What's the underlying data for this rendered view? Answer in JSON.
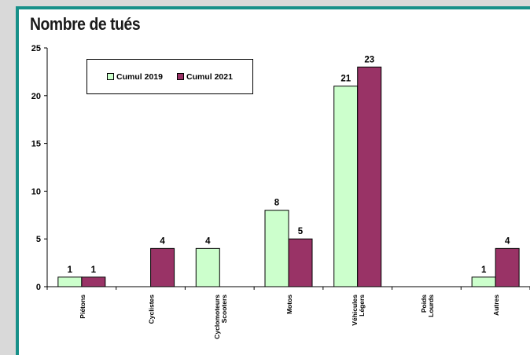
{
  "colors": {
    "frame": "#179089",
    "series_2019": "#ccffcc",
    "series_2021": "#993366"
  },
  "chart_data": {
    "type": "bar",
    "title": "Nombre de tués",
    "categories": [
      [
        "Piétons"
      ],
      [
        "Cyclistes"
      ],
      [
        "Cyclomoteurs",
        "Scooters"
      ],
      [
        "Motos"
      ],
      [
        "Véhicules",
        "Légers"
      ],
      [
        "Poids",
        "Lourds"
      ],
      [
        "Autres"
      ]
    ],
    "series": [
      {
        "name": "Cumul 2019",
        "values": [
          1,
          null,
          4,
          8,
          21,
          null,
          1
        ]
      },
      {
        "name": "Cumul 2021",
        "values": [
          1,
          4,
          null,
          5,
          23,
          null,
          4
        ]
      }
    ],
    "ylim": [
      0,
      25
    ],
    "yticks": [
      0,
      5,
      10,
      15,
      20,
      25
    ],
    "legend_position": "top-left",
    "grid": false
  }
}
